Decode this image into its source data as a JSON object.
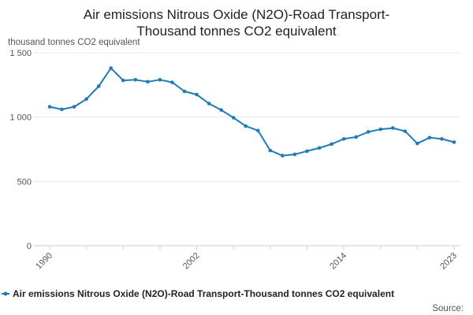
{
  "chart_data": {
    "type": "line",
    "title": [
      "Air emissions Nitrous Oxide (N2O)-Road Transport-",
      "Thousand tonnes CO2 equivalent"
    ],
    "ylabel": "thousand tonnes CO2 equivalent",
    "ylim": [
      0,
      1500
    ],
    "yticks": [
      0,
      500,
      1000,
      1500
    ],
    "ytick_labels": [
      "0",
      "500",
      "1 000",
      "1 500"
    ],
    "xlim": [
      1990,
      2023
    ],
    "xticks": [
      1990,
      2002,
      2014,
      2023
    ],
    "xtick_labels": [
      "1990",
      "2002",
      "2014",
      "2023"
    ],
    "grid": "horizontal",
    "legend_position": "bottom",
    "series": [
      {
        "name": "Air emissions Nitrous Oxide (N2O)-Road Transport-Thousand tonnes CO2 equivalent",
        "color": "#1f7bb6",
        "x": [
          1990,
          1991,
          1992,
          1993,
          1994,
          1995,
          1996,
          1997,
          1998,
          1999,
          2000,
          2001,
          2002,
          2003,
          2004,
          2005,
          2006,
          2007,
          2008,
          2009,
          2010,
          2011,
          2012,
          2013,
          2014,
          2015,
          2016,
          2017,
          2018,
          2019,
          2020,
          2021,
          2022,
          2023
        ],
        "y": [
          1080,
          1060,
          1080,
          1140,
          1240,
          1380,
          1285,
          1290,
          1275,
          1290,
          1270,
          1200,
          1175,
          1105,
          1055,
          995,
          930,
          895,
          740,
          700,
          710,
          735,
          760,
          790,
          830,
          845,
          885,
          905,
          915,
          890,
          795,
          840,
          830,
          805
        ]
      }
    ],
    "source_label": "Source:"
  }
}
